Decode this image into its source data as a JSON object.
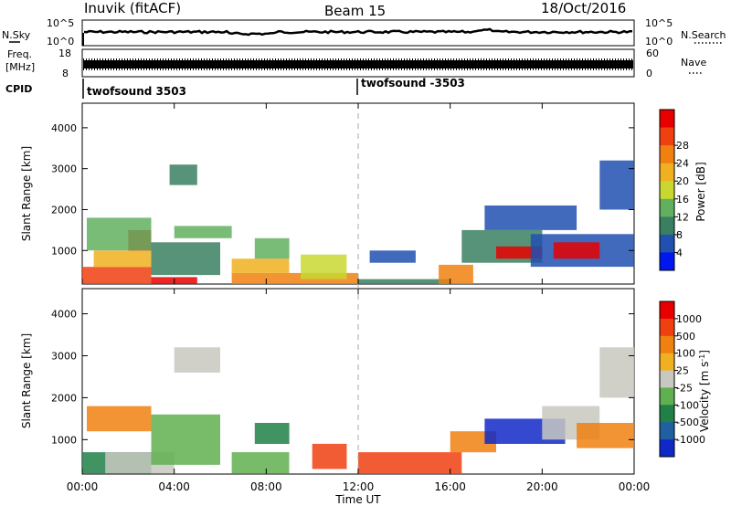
{
  "header": {
    "station": "Inuvik (fitACF)",
    "beam": "Beam 15",
    "date": "18/Oct/2016"
  },
  "strips": {
    "nsky_label": "N.Sky",
    "nsky_ticks": [
      "10^5",
      "10^0"
    ],
    "nsearch_label": "N.Search",
    "nsearch_ticks": [
      "10^5",
      "10^0"
    ],
    "freq_label_line1": "Freq.",
    "freq_label_line2": "[MHz]",
    "freq_ticks": [
      "18",
      "8"
    ],
    "nave_label": "Nave",
    "nave_ticks": [
      "60",
      "0"
    ],
    "cpid_label": "CPID",
    "cpid_segments": [
      "twofsound 3503",
      "twofsound -3503"
    ]
  },
  "chart_data": [
    {
      "type": "heatmap",
      "panel": "power",
      "ylabel": "Slant Range [km]",
      "yticks": [
        1000,
        2000,
        3000,
        4000
      ],
      "ylim": [
        180,
        4600
      ],
      "colorbar_label": "Power [dB]",
      "colorbar_ticks": [
        4,
        8,
        12,
        16,
        20,
        24,
        28
      ],
      "colors": [
        "#0018f0",
        "#2050b0",
        "#3a8060",
        "#60b060",
        "#c8d830",
        "#f0b020",
        "#f08010",
        "#f04010",
        "#e80000"
      ],
      "gates": [
        {
          "x0": 0.0,
          "x1": 3.0,
          "r0": 180,
          "r1": 600,
          "level": 7
        },
        {
          "x0": 3.0,
          "x1": 5.0,
          "r0": 180,
          "r1": 350,
          "level": 8
        },
        {
          "x0": 0.5,
          "x1": 3.0,
          "r0": 600,
          "r1": 1000,
          "level": 5
        },
        {
          "x0": 2.0,
          "x1": 3.0,
          "r0": 1000,
          "r1": 1500,
          "level": 8
        },
        {
          "x0": 0.2,
          "x1": 3.0,
          "r0": 1000,
          "r1": 1800,
          "level": 3
        },
        {
          "x0": 3.0,
          "x1": 6.0,
          "r0": 400,
          "r1": 1200,
          "level": 2
        },
        {
          "x0": 4.0,
          "x1": 6.5,
          "r0": 1300,
          "r1": 1600,
          "level": 3
        },
        {
          "x0": 3.8,
          "x1": 5.0,
          "r0": 2600,
          "r1": 3100,
          "level": 2
        },
        {
          "x0": 6.5,
          "x1": 12.0,
          "r0": 180,
          "r1": 450,
          "level": 6
        },
        {
          "x0": 6.5,
          "x1": 9.0,
          "r0": 450,
          "r1": 800,
          "level": 5
        },
        {
          "x0": 7.5,
          "x1": 9.0,
          "r0": 800,
          "r1": 1300,
          "level": 3
        },
        {
          "x0": 9.5,
          "x1": 11.5,
          "r0": 300,
          "r1": 900,
          "level": 4
        },
        {
          "x0": 12.0,
          "x1": 16.0,
          "r0": 180,
          "r1": 300,
          "level": 2
        },
        {
          "x0": 12.5,
          "x1": 14.5,
          "r0": 700,
          "r1": 1000,
          "level": 1
        },
        {
          "x0": 15.5,
          "x1": 17.0,
          "r0": 180,
          "r1": 650,
          "level": 6
        },
        {
          "x0": 16.5,
          "x1": 20.0,
          "r0": 700,
          "r1": 1500,
          "level": 2
        },
        {
          "x0": 18.0,
          "x1": 20.0,
          "r0": 800,
          "r1": 1100,
          "level": 8
        },
        {
          "x0": 19.5,
          "x1": 24.0,
          "r0": 600,
          "r1": 1400,
          "level": 1
        },
        {
          "x0": 20.5,
          "x1": 22.5,
          "r0": 800,
          "r1": 1200,
          "level": 8
        },
        {
          "x0": 17.5,
          "x1": 21.5,
          "r0": 1500,
          "r1": 2100,
          "level": 1
        },
        {
          "x0": 22.5,
          "x1": 24.0,
          "r0": 2000,
          "r1": 3200,
          "level": 1
        }
      ]
    },
    {
      "type": "heatmap",
      "panel": "velocity",
      "ylabel": "Slant Range [km]",
      "yticks": [
        1000,
        2000,
        3000,
        4000
      ],
      "ylim": [
        180,
        4600
      ],
      "colorbar_label": "Velocity [m s^-1]",
      "colorbar_ticks": [
        1000,
        500,
        100,
        25,
        -25,
        -100,
        -500,
        -1000
      ],
      "colors": [
        "#1028c8",
        "#2060a0",
        "#208048",
        "#60b050",
        "#c8c8c0",
        "#f0b020",
        "#f08010",
        "#f04010",
        "#e80000"
      ],
      "gates": [
        {
          "x0": 0.0,
          "x1": 3.0,
          "r0": 180,
          "r1": 700,
          "level": 2
        },
        {
          "x0": 1.0,
          "x1": 4.0,
          "r0": 200,
          "r1": 700,
          "level": 4
        },
        {
          "x0": 0.2,
          "x1": 3.0,
          "r0": 1200,
          "r1": 1800,
          "level": 6
        },
        {
          "x0": 3.0,
          "x1": 6.0,
          "r0": 400,
          "r1": 1600,
          "level": 3
        },
        {
          "x0": 4.0,
          "x1": 6.0,
          "r0": 2600,
          "r1": 3200,
          "level": 4
        },
        {
          "x0": 6.5,
          "x1": 9.0,
          "r0": 200,
          "r1": 700,
          "level": 3
        },
        {
          "x0": 7.5,
          "x1": 9.0,
          "r0": 900,
          "r1": 1400,
          "level": 2
        },
        {
          "x0": 10.0,
          "x1": 11.5,
          "r0": 300,
          "r1": 900,
          "level": 7
        },
        {
          "x0": 12.0,
          "x1": 16.5,
          "r0": 180,
          "r1": 700,
          "level": 7
        },
        {
          "x0": 16.0,
          "x1": 18.0,
          "r0": 700,
          "r1": 1200,
          "level": 6
        },
        {
          "x0": 17.5,
          "x1": 21.0,
          "r0": 900,
          "r1": 1500,
          "level": 0
        },
        {
          "x0": 20.0,
          "x1": 22.5,
          "r0": 1000,
          "r1": 1800,
          "level": 4
        },
        {
          "x0": 21.5,
          "x1": 24.0,
          "r0": 800,
          "r1": 1400,
          "level": 6
        },
        {
          "x0": 22.5,
          "x1": 24.0,
          "r0": 2000,
          "r1": 3200,
          "level": 4
        }
      ]
    }
  ],
  "xaxis": {
    "label": "Time UT",
    "ticks": [
      "00:00",
      "04:00",
      "08:00",
      "12:00",
      "16:00",
      "20:00",
      "00:00"
    ],
    "xlim": [
      0,
      24
    ],
    "midline_hour": 12
  }
}
